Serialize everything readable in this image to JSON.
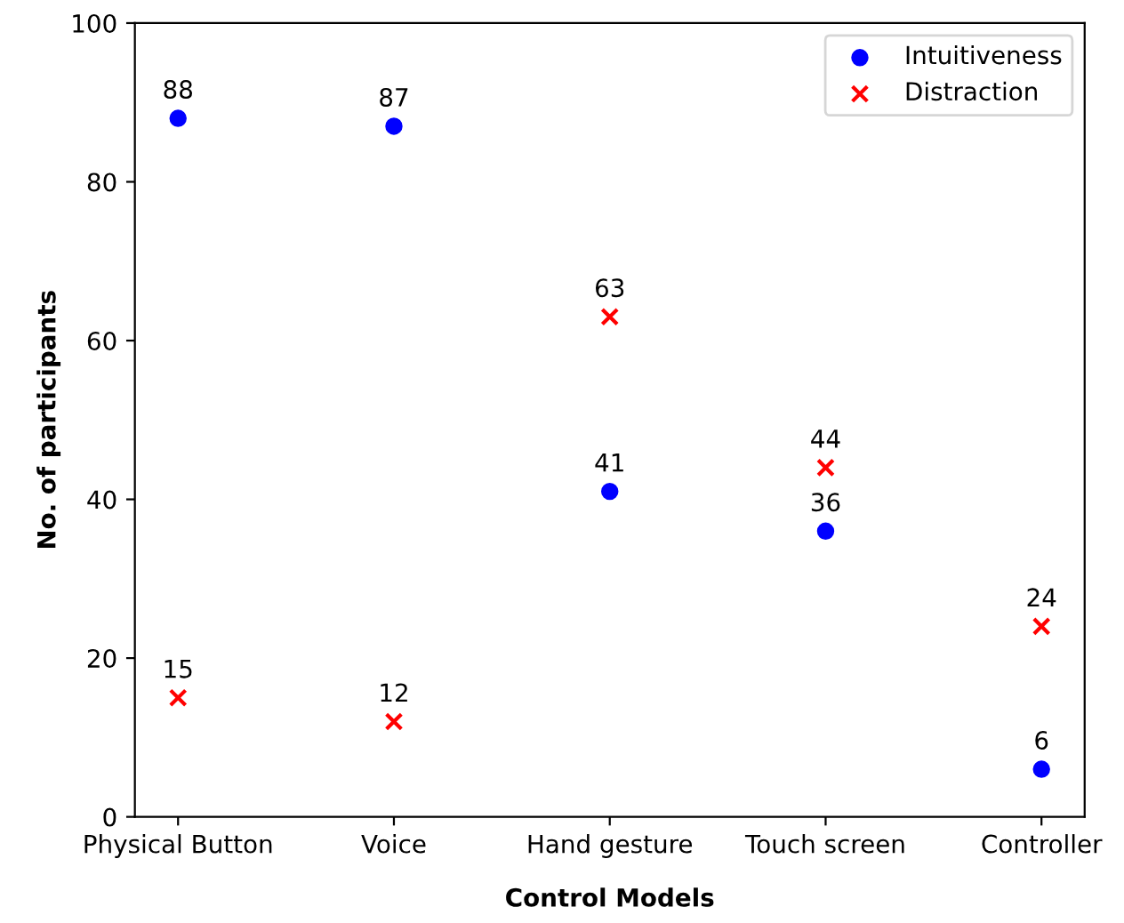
{
  "chart_data": {
    "type": "scatter",
    "xlabel": "Control Models",
    "ylabel": "No. of participants",
    "categories": [
      "Physical Button",
      "Voice",
      "Hand gesture",
      "Touch screen",
      "Controller"
    ],
    "series": [
      {
        "name": "Intuitiveness",
        "color": "#0000ff",
        "marker": "circle",
        "values": [
          88,
          87,
          41,
          36,
          6
        ]
      },
      {
        "name": "Distraction",
        "color": "#ff0000",
        "marker": "cross",
        "values": [
          15,
          12,
          63,
          44,
          24
        ]
      }
    ],
    "ylim": [
      0,
      100
    ],
    "yticks": [
      0,
      20,
      40,
      60,
      80,
      100
    ],
    "data_labels": true,
    "legend": "top right",
    "grid": false
  }
}
